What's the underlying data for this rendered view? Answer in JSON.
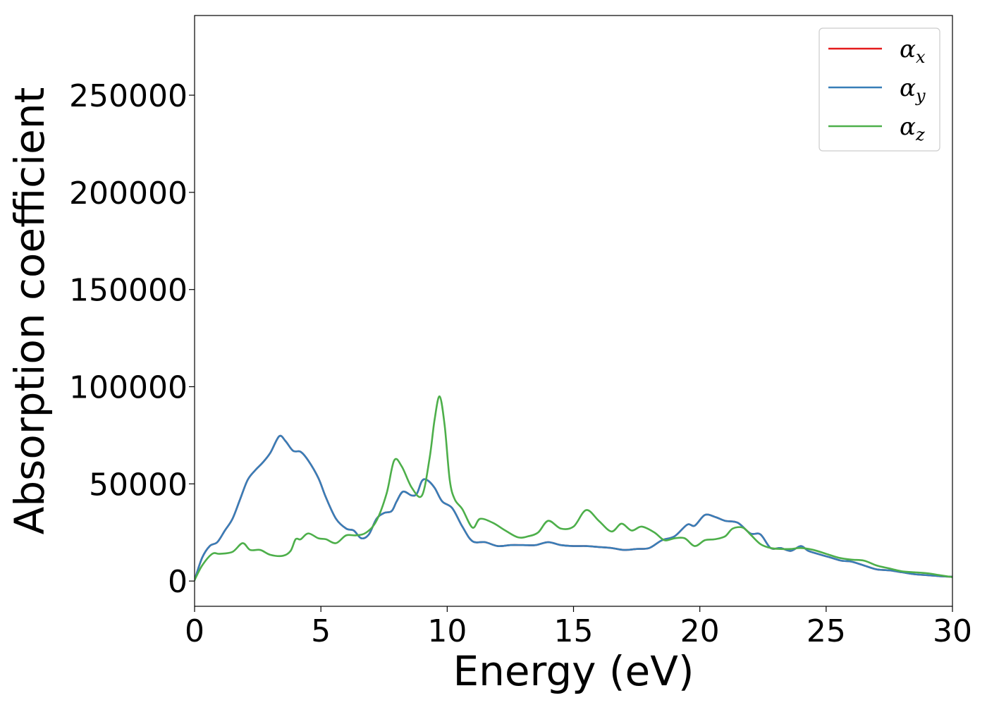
{
  "chart_data": {
    "type": "line",
    "xlabel": "Energy (eV)",
    "ylabel": "Absorption coefficient",
    "xlim": [
      0,
      30
    ],
    "ylim": [
      -13000,
      291000
    ],
    "x_ticks": [
      "0",
      "5",
      "10",
      "15",
      "20",
      "25",
      "30"
    ],
    "y_ticks": [
      "0",
      "50000",
      "100000",
      "150000",
      "200000",
      "250000"
    ],
    "grid": false,
    "legend_position": "top-right",
    "colors": {
      "alpha_x": "#e41a1c",
      "alpha_y": "#377eb8",
      "alpha_z": "#4daf4a"
    },
    "legend": [
      {
        "key": "alpha_x",
        "symbol": "α",
        "sub": "x"
      },
      {
        "key": "alpha_y",
        "symbol": "α",
        "sub": "y"
      },
      {
        "key": "alpha_z",
        "symbol": "α",
        "sub": "z"
      }
    ],
    "series": [
      {
        "key": "alpha_x",
        "x": [
          0,
          0.3,
          0.6,
          0.9,
          1.2,
          1.5,
          1.8,
          2.1,
          2.4,
          2.7,
          3.0,
          3.35,
          3.6,
          3.9,
          4.2,
          4.5,
          4.9,
          5.2,
          5.6,
          6.0,
          6.3,
          6.6,
          6.9,
          7.2,
          7.5,
          7.8,
          8.0,
          8.25,
          8.6,
          8.8,
          9.0,
          9.2,
          9.5,
          9.8,
          10.2,
          10.6,
          11.0,
          11.5,
          12.0,
          12.5,
          13.0,
          13.5,
          14.0,
          14.5,
          15.0,
          15.5,
          16.0,
          16.5,
          17.0,
          17.5,
          18.0,
          18.5,
          19.0,
          19.5,
          19.8,
          20.2,
          20.6,
          21.0,
          21.5,
          22.0,
          22.4,
          22.8,
          23.2,
          23.6,
          24.0,
          24.3,
          24.8,
          25.2,
          25.6,
          26.0,
          26.5,
          27.0,
          27.5,
          28.0,
          28.5,
          29.0,
          29.5,
          30.0
        ],
        "y": [
          500,
          12000,
          18000,
          20000,
          26000,
          32000,
          42000,
          52000,
          57000,
          61000,
          66000,
          74500,
          72000,
          67000,
          66500,
          62000,
          53000,
          43000,
          32000,
          27000,
          26000,
          22000,
          24000,
          32000,
          35000,
          36000,
          41000,
          46000,
          44000,
          45000,
          51500,
          52000,
          48000,
          41000,
          37500,
          28000,
          20500,
          20000,
          18000,
          18500,
          18500,
          18500,
          20000,
          18500,
          18000,
          18000,
          17500,
          17000,
          16000,
          16500,
          17000,
          21000,
          23000,
          29000,
          28500,
          34000,
          33000,
          31000,
          30000,
          24500,
          24000,
          17000,
          17000,
          15500,
          18000,
          15500,
          13500,
          12000,
          10500,
          10000,
          8000,
          6000,
          5500,
          4500,
          3500,
          3000,
          2500,
          2200
        ]
      },
      {
        "key": "alpha_y",
        "x": [
          0,
          0.3,
          0.6,
          0.9,
          1.2,
          1.5,
          1.8,
          2.1,
          2.4,
          2.7,
          3.0,
          3.35,
          3.6,
          3.9,
          4.2,
          4.5,
          4.9,
          5.2,
          5.6,
          6.0,
          6.3,
          6.6,
          6.9,
          7.2,
          7.5,
          7.8,
          8.0,
          8.25,
          8.6,
          8.8,
          9.0,
          9.2,
          9.5,
          9.8,
          10.2,
          10.6,
          11.0,
          11.5,
          12.0,
          12.5,
          13.0,
          13.5,
          14.0,
          14.5,
          15.0,
          15.5,
          16.0,
          16.5,
          17.0,
          17.5,
          18.0,
          18.5,
          19.0,
          19.5,
          19.8,
          20.2,
          20.6,
          21.0,
          21.5,
          22.0,
          22.4,
          22.8,
          23.2,
          23.6,
          24.0,
          24.3,
          24.8,
          25.2,
          25.6,
          26.0,
          26.5,
          27.0,
          27.5,
          28.0,
          28.5,
          29.0,
          29.5,
          30.0
        ],
        "y": [
          500,
          12000,
          18000,
          20000,
          26000,
          32000,
          42000,
          52000,
          57000,
          61000,
          66000,
          74500,
          72000,
          67000,
          66500,
          62000,
          53000,
          43000,
          32000,
          27000,
          26000,
          22000,
          24000,
          32000,
          35000,
          36000,
          41000,
          46000,
          44000,
          45000,
          51500,
          52000,
          48000,
          41000,
          37500,
          28000,
          20500,
          20000,
          18000,
          18500,
          18500,
          18500,
          20000,
          18500,
          18000,
          18000,
          17500,
          17000,
          16000,
          16500,
          17000,
          21000,
          23000,
          29000,
          28500,
          34000,
          33000,
          31000,
          30000,
          24500,
          24000,
          17000,
          17000,
          15500,
          18000,
          15500,
          13500,
          12000,
          10500,
          10000,
          8000,
          6000,
          5500,
          4500,
          3500,
          3000,
          2500,
          2200
        ]
      },
      {
        "key": "alpha_z",
        "x": [
          0,
          0.3,
          0.7,
          1.0,
          1.5,
          1.9,
          2.2,
          2.6,
          3.0,
          3.5,
          3.8,
          4.0,
          4.2,
          4.5,
          4.9,
          5.2,
          5.6,
          6.0,
          6.4,
          6.8,
          7.2,
          7.6,
          7.9,
          8.2,
          8.6,
          9.0,
          9.3,
          9.5,
          9.7,
          9.9,
          10.1,
          10.3,
          10.6,
          11.0,
          11.3,
          11.8,
          12.3,
          12.8,
          13.2,
          13.6,
          14.0,
          14.5,
          15.0,
          15.5,
          16.0,
          16.5,
          16.9,
          17.3,
          17.7,
          18.2,
          18.6,
          19.0,
          19.4,
          19.8,
          20.2,
          20.6,
          21.0,
          21.3,
          21.7,
          22.0,
          22.4,
          22.8,
          23.2,
          23.6,
          24.0,
          24.5,
          25.0,
          25.5,
          26.0,
          26.5,
          27.0,
          27.5,
          28.0,
          28.5,
          29.0,
          29.5,
          30.0
        ],
        "y": [
          500,
          8000,
          14000,
          14000,
          15000,
          19500,
          16000,
          16000,
          13500,
          13000,
          15500,
          21500,
          21500,
          24500,
          22000,
          21500,
          19500,
          23500,
          23500,
          25000,
          31000,
          45000,
          62000,
          59000,
          48000,
          44000,
          63000,
          83000,
          95000,
          80000,
          52000,
          42000,
          37000,
          27500,
          32000,
          30000,
          26000,
          22500,
          23000,
          25000,
          31000,
          27000,
          28000,
          36500,
          31000,
          25500,
          29500,
          26000,
          28000,
          25000,
          21000,
          22000,
          22000,
          18000,
          21000,
          21500,
          23000,
          27000,
          27500,
          24000,
          19000,
          17000,
          16500,
          16500,
          17000,
          16000,
          14000,
          12000,
          11000,
          10500,
          8000,
          6500,
          5000,
          4500,
          4000,
          3000,
          2000
        ]
      }
    ]
  }
}
